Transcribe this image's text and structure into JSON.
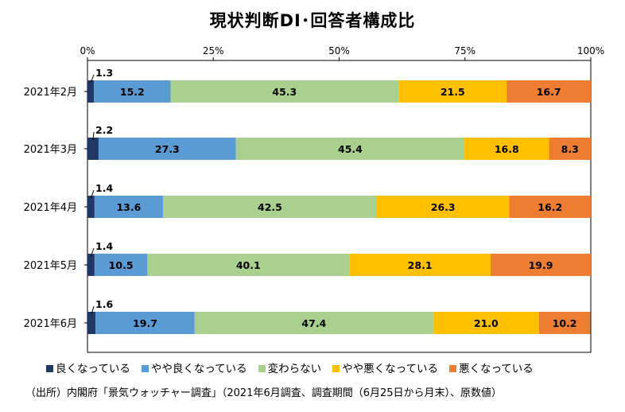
{
  "chart_data": {
    "type": "bar",
    "orientation": "horizontal",
    "stacked": true,
    "title": "現状判断DI･回答者構成比",
    "categories": [
      "2021年2月",
      "2021年3月",
      "2021年4月",
      "2021年5月",
      "2021年6月"
    ],
    "x_tick_labels": [
      "0%",
      "25%",
      "50%",
      "75%",
      "100%"
    ],
    "xlim": [
      0,
      100
    ],
    "grid": false,
    "legend_position": "bottom",
    "series": [
      {
        "name": "良くなっている",
        "color": "#1f3864",
        "values": [
          1.3,
          2.2,
          1.4,
          1.4,
          1.6
        ]
      },
      {
        "name": "やや良くなっている",
        "color": "#5b9bd5",
        "values": [
          15.2,
          27.3,
          13.6,
          10.5,
          19.7
        ]
      },
      {
        "name": "変わらない",
        "color": "#a9d08e",
        "values": [
          45.3,
          45.4,
          42.5,
          40.1,
          47.4
        ]
      },
      {
        "name": "やや悪くなっている",
        "color": "#ffc000",
        "values": [
          21.5,
          16.8,
          26.3,
          28.1,
          21.0
        ]
      },
      {
        "name": "悪くなっている",
        "color": "#ed7d31",
        "values": [
          16.7,
          8.3,
          16.2,
          19.9,
          10.2
        ]
      }
    ],
    "value_labels": [
      [
        "1.3",
        "15.2",
        "45.3",
        "21.5",
        "16.7"
      ],
      [
        "2.2",
        "27.3",
        "45.4",
        "16.8",
        "8.3"
      ],
      [
        "1.4",
        "13.6",
        "42.5",
        "26.3",
        "16.2"
      ],
      [
        "1.4",
        "10.5",
        "40.1",
        "28.1",
        "19.9"
      ],
      [
        "1.6",
        "19.7",
        "47.4",
        "21.0",
        "10.2"
      ]
    ]
  },
  "source_note": "（出所）内閣府「景気ウォッチャー調査」（2021年6月調査、調査期間（6月25日から月末）、原数値）"
}
